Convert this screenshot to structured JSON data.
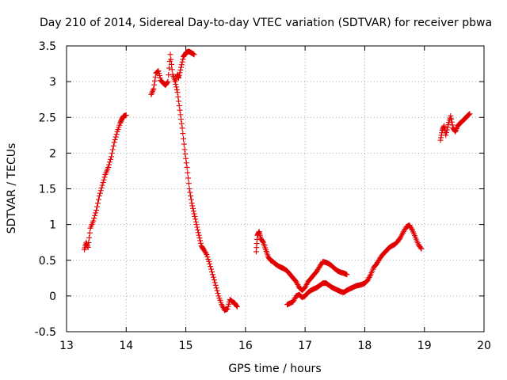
{
  "chart_data": {
    "type": "scatter",
    "title": "Day 210 of 2014, Sidereal Day-to-day VTEC variation (SDTVAR) for receiver pbwa",
    "xlabel": "GPS time / hours",
    "ylabel": "SDTVAR / TECUs",
    "xlim": [
      13,
      20
    ],
    "ylim": [
      -0.5,
      3.5
    ],
    "x_ticks": [
      13,
      14,
      15,
      16,
      17,
      18,
      19,
      20
    ],
    "x_tick_labels": [
      "13",
      "14",
      "15",
      "16",
      "17",
      "18",
      "19",
      "20"
    ],
    "y_ticks": [
      -0.5,
      0,
      0.5,
      1,
      1.5,
      2,
      2.5,
      3,
      3.5
    ],
    "y_tick_labels": [
      "-0.5",
      "0",
      "0.5",
      "1",
      "1.5",
      "2",
      "2.5",
      "3",
      "3.5"
    ],
    "grid": true,
    "marker": "+",
    "color": "#e00000",
    "series": [
      {
        "name": "SDTVAR",
        "segments": [
          {
            "x": [
              13.3,
              13.33,
              13.36,
              13.4,
              13.45,
              13.5,
              13.55,
              13.6,
              13.65,
              13.7,
              13.75,
              13.8,
              13.85,
              13.9,
              13.93,
              13.96,
              14.0
            ],
            "y": [
              0.65,
              0.75,
              0.68,
              0.95,
              1.05,
              1.2,
              1.4,
              1.55,
              1.7,
              1.8,
              1.95,
              2.15,
              2.3,
              2.42,
              2.48,
              2.52,
              2.53
            ]
          },
          {
            "x": [
              14.42,
              14.46,
              14.5,
              14.54,
              14.58,
              14.62,
              14.66,
              14.7,
              14.74,
              14.78,
              14.82,
              14.86,
              14.88,
              14.92,
              14.96,
              15.0,
              15.03,
              15.06,
              15.1,
              15.14
            ],
            "y": [
              2.82,
              2.9,
              3.12,
              3.15,
              3.02,
              2.98,
              2.95,
              3.0,
              3.38,
              3.1,
              3.0,
              3.1,
              3.05,
              3.2,
              3.35,
              3.4,
              3.42,
              3.42,
              3.4,
              3.38
            ]
          },
          {
            "x": [
              14.82,
              14.86,
              14.9,
              14.94,
              14.98,
              15.02,
              15.06,
              15.1,
              15.14,
              15.18,
              15.22,
              15.26,
              15.3,
              15.35,
              15.4,
              15.45,
              15.5,
              15.55,
              15.6,
              15.65,
              15.7,
              15.74,
              15.78,
              15.82,
              15.86
            ],
            "y": [
              3.0,
              2.85,
              2.6,
              2.35,
              2.05,
              1.8,
              1.5,
              1.3,
              1.15,
              1.0,
              0.85,
              0.7,
              0.65,
              0.58,
              0.45,
              0.3,
              0.15,
              0.0,
              -0.12,
              -0.2,
              -0.18,
              -0.05,
              -0.08,
              -0.1,
              -0.15
            ]
          },
          {
            "x": [
              16.18,
              16.2,
              16.23,
              16.26,
              16.3,
              16.34,
              16.38,
              16.42,
              16.46,
              16.5,
              16.55,
              16.6,
              16.65,
              16.7,
              16.75,
              16.8,
              16.85,
              16.9,
              16.95,
              17.0,
              17.05,
              17.1,
              17.15,
              17.2,
              17.25,
              17.3,
              17.35,
              17.4,
              17.45,
              17.5,
              17.55,
              17.6,
              17.65,
              17.7
            ],
            "y": [
              0.62,
              0.85,
              0.9,
              0.8,
              0.75,
              0.65,
              0.55,
              0.5,
              0.48,
              0.45,
              0.42,
              0.4,
              0.38,
              0.35,
              0.3,
              0.25,
              0.2,
              0.12,
              0.08,
              0.12,
              0.2,
              0.25,
              0.3,
              0.35,
              0.42,
              0.48,
              0.47,
              0.45,
              0.42,
              0.38,
              0.35,
              0.33,
              0.32,
              0.3
            ]
          },
          {
            "x": [
              16.7,
              16.75,
              16.8,
              16.85,
              16.9,
              16.95,
              17.0,
              17.05,
              17.1,
              17.15,
              17.2,
              17.25,
              17.3,
              17.35,
              17.4,
              17.45,
              17.5,
              17.55,
              17.6,
              17.65,
              17.7,
              17.75,
              17.8,
              17.85,
              17.9,
              17.95,
              18.0,
              18.05,
              18.1,
              18.15,
              18.2,
              18.25,
              18.3,
              18.35,
              18.4,
              18.45,
              18.5,
              18.55,
              18.6,
              18.65,
              18.7,
              18.75,
              18.8,
              18.85,
              18.9,
              18.95
            ],
            "y": [
              -0.12,
              -0.1,
              -0.08,
              0.0,
              0.02,
              -0.02,
              0.0,
              0.05,
              0.08,
              0.1,
              0.12,
              0.15,
              0.18,
              0.18,
              0.15,
              0.12,
              0.1,
              0.08,
              0.06,
              0.05,
              0.08,
              0.1,
              0.12,
              0.14,
              0.15,
              0.16,
              0.18,
              0.22,
              0.3,
              0.4,
              0.45,
              0.52,
              0.58,
              0.62,
              0.67,
              0.7,
              0.72,
              0.76,
              0.82,
              0.9,
              0.97,
              0.99,
              0.92,
              0.82,
              0.72,
              0.66
            ]
          },
          {
            "x": [
              19.27,
              19.3,
              19.33,
              19.36,
              19.4,
              19.44,
              19.48,
              19.52,
              19.56,
              19.6,
              19.64,
              19.68,
              19.72,
              19.76
            ],
            "y": [
              2.18,
              2.32,
              2.38,
              2.25,
              2.4,
              2.52,
              2.35,
              2.3,
              2.38,
              2.42,
              2.45,
              2.48,
              2.52,
              2.55
            ]
          }
        ]
      }
    ]
  }
}
